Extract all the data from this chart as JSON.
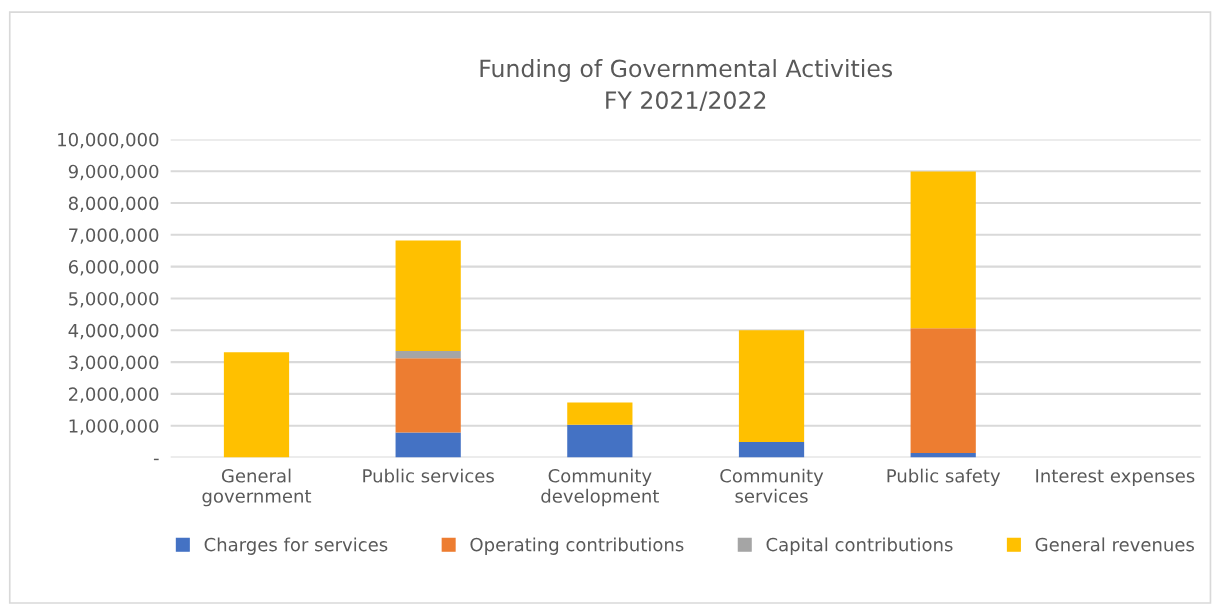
{
  "chart_data": {
    "type": "bar",
    "title": "Funding of Governmental Activities\nFY 2021/2022",
    "stacked": true,
    "categories": [
      "General\ngovernment",
      "Public services",
      "Community\ndevelopment",
      "Community\nservices",
      "Public safety",
      "Interest expenses"
    ],
    "series": [
      {
        "name": "Charges for services",
        "color": "#4472c4",
        "values": [
          0,
          790000,
          1030000,
          490000,
          140000,
          0
        ]
      },
      {
        "name": "Operating contributions",
        "color": "#ed7d31",
        "values": [
          0,
          2330000,
          0,
          0,
          3920000,
          0
        ]
      },
      {
        "name": "Capital contributions",
        "color": "#a5a5a5",
        "values": [
          0,
          230000,
          0,
          0,
          0,
          0
        ]
      },
      {
        "name": "General revenues",
        "color": "#ffc000",
        "values": [
          3310000,
          3470000,
          700000,
          3510000,
          4930000,
          0
        ]
      }
    ],
    "ylim": [
      0,
      10000000
    ],
    "yticks": [
      {
        "value": 0,
        "label": "-"
      },
      {
        "value": 1000000,
        "label": "1,000,000"
      },
      {
        "value": 2000000,
        "label": "2,000,000"
      },
      {
        "value": 3000000,
        "label": "3,000,000"
      },
      {
        "value": 4000000,
        "label": "4,000,000"
      },
      {
        "value": 5000000,
        "label": "5,000,000"
      },
      {
        "value": 6000000,
        "label": "6,000,000"
      },
      {
        "value": 7000000,
        "label": "7,000,000"
      },
      {
        "value": 8000000,
        "label": "8,000,000"
      },
      {
        "value": 9000000,
        "label": "9,000,000"
      },
      {
        "value": 10000000,
        "label": "10,000,000"
      }
    ],
    "grid": "y",
    "legend": "bottom"
  }
}
